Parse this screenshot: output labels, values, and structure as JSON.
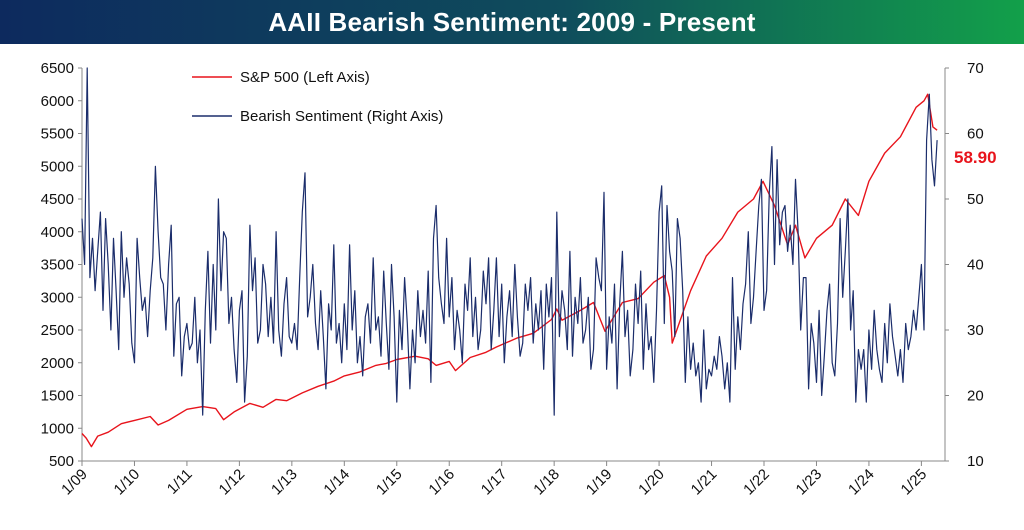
{
  "title": "AAII Bearish Sentiment: 2009 - Present",
  "colors": {
    "sp500": "#e8141c",
    "bearish": "#1b2d6b",
    "title_start": "#0d2a5e",
    "title_end": "#12a04a",
    "callout": "#e8141c"
  },
  "chart_data": {
    "type": "line",
    "title": "AAII Bearish Sentiment: 2009 - Present",
    "xlabel": "",
    "ylabel_left": "",
    "ylabel_right": "",
    "x_ticks": [
      "1/09",
      "1/10",
      "1/11",
      "1/12",
      "1/13",
      "1/14",
      "1/15",
      "1/16",
      "1/17",
      "1/18",
      "1/19",
      "1/20",
      "1/21",
      "1/22",
      "1/23",
      "1/24",
      "1/25"
    ],
    "x_range": [
      2009.0,
      2025.45
    ],
    "y_left": {
      "ticks": [
        500,
        1000,
        1500,
        2000,
        2500,
        3000,
        3500,
        4000,
        4500,
        5000,
        5500,
        6000,
        6500
      ],
      "ylim": [
        500,
        6500
      ]
    },
    "y_right": {
      "ticks": [
        10,
        20,
        30,
        40,
        50,
        60,
        70
      ],
      "ylim": [
        10,
        70
      ]
    },
    "grid": false,
    "legend_position": "top-left",
    "last_value_label": "58.90",
    "series": [
      {
        "name": "S&P 500 (Left Axis)",
        "axis": "left",
        "x": [
          2009.0,
          2009.08,
          2009.18,
          2009.3,
          2009.5,
          2009.75,
          2010.0,
          2010.3,
          2010.45,
          2010.65,
          2011.0,
          2011.3,
          2011.55,
          2011.7,
          2011.9,
          2012.2,
          2012.45,
          2012.7,
          2012.9,
          2013.2,
          2013.5,
          2013.8,
          2014.0,
          2014.3,
          2014.6,
          2014.8,
          2015.0,
          2015.35,
          2015.6,
          2015.75,
          2016.0,
          2016.12,
          2016.4,
          2016.7,
          2016.9,
          2017.3,
          2017.6,
          2017.95,
          2018.05,
          2018.15,
          2018.5,
          2018.75,
          2018.97,
          2019.3,
          2019.6,
          2019.9,
          2020.1,
          2020.2,
          2020.25,
          2020.6,
          2020.9,
          2021.2,
          2021.5,
          2021.8,
          2021.98,
          2022.2,
          2022.45,
          2022.6,
          2022.78,
          2023.0,
          2023.3,
          2023.55,
          2023.8,
          2024.0,
          2024.3,
          2024.6,
          2024.9,
          2025.05,
          2025.12,
          2025.22,
          2025.3
        ],
        "values": [
          920,
          850,
          720,
          880,
          940,
          1070,
          1120,
          1180,
          1050,
          1120,
          1290,
          1330,
          1300,
          1130,
          1250,
          1380,
          1320,
          1440,
          1420,
          1540,
          1640,
          1720,
          1800,
          1860,
          1960,
          1990,
          2050,
          2100,
          2060,
          1960,
          2020,
          1880,
          2080,
          2160,
          2240,
          2380,
          2450,
          2660,
          2820,
          2650,
          2800,
          2920,
          2480,
          2920,
          2980,
          3230,
          3330,
          3000,
          2300,
          3100,
          3630,
          3900,
          4300,
          4500,
          4770,
          4400,
          3800,
          4100,
          3600,
          3900,
          4100,
          4500,
          4250,
          4770,
          5200,
          5450,
          5900,
          6000,
          6100,
          5600,
          5550
        ]
      },
      {
        "name": "Bearish Sentiment (Right Axis)",
        "axis": "right",
        "x": [
          2009.0,
          2009.05,
          2009.1,
          2009.15,
          2009.2,
          2009.25,
          2009.3,
          2009.35,
          2009.4,
          2009.45,
          2009.5,
          2009.55,
          2009.6,
          2009.65,
          2009.7,
          2009.75,
          2009.8,
          2009.85,
          2009.9,
          2009.95,
          2010.0,
          2010.05,
          2010.1,
          2010.15,
          2010.2,
          2010.25,
          2010.3,
          2010.35,
          2010.4,
          2010.45,
          2010.5,
          2010.55,
          2010.6,
          2010.65,
          2010.7,
          2010.75,
          2010.8,
          2010.85,
          2010.9,
          2010.95,
          2011.0,
          2011.05,
          2011.1,
          2011.15,
          2011.2,
          2011.25,
          2011.3,
          2011.35,
          2011.4,
          2011.45,
          2011.5,
          2011.55,
          2011.6,
          2011.65,
          2011.7,
          2011.75,
          2011.8,
          2011.85,
          2011.9,
          2011.95,
          2012.0,
          2012.05,
          2012.1,
          2012.15,
          2012.2,
          2012.25,
          2012.3,
          2012.35,
          2012.4,
          2012.45,
          2012.5,
          2012.55,
          2012.6,
          2012.65,
          2012.7,
          2012.75,
          2012.8,
          2012.85,
          2012.9,
          2012.95,
          2013.0,
          2013.05,
          2013.1,
          2013.15,
          2013.2,
          2013.25,
          2013.3,
          2013.35,
          2013.4,
          2013.45,
          2013.5,
          2013.55,
          2013.6,
          2013.65,
          2013.7,
          2013.75,
          2013.8,
          2013.85,
          2013.9,
          2013.95,
          2014.0,
          2014.05,
          2014.1,
          2014.15,
          2014.2,
          2014.25,
          2014.3,
          2014.35,
          2014.4,
          2014.45,
          2014.5,
          2014.55,
          2014.6,
          2014.65,
          2014.7,
          2014.75,
          2014.8,
          2014.85,
          2014.9,
          2014.95,
          2015.0,
          2015.05,
          2015.1,
          2015.15,
          2015.2,
          2015.25,
          2015.3,
          2015.35,
          2015.4,
          2015.45,
          2015.5,
          2015.55,
          2015.6,
          2015.65,
          2015.7,
          2015.75,
          2015.8,
          2015.85,
          2015.9,
          2015.95,
          2016.0,
          2016.05,
          2016.1,
          2016.15,
          2016.2,
          2016.25,
          2016.3,
          2016.35,
          2016.4,
          2016.45,
          2016.5,
          2016.55,
          2016.6,
          2016.65,
          2016.7,
          2016.75,
          2016.8,
          2016.85,
          2016.9,
          2016.95,
          2017.0,
          2017.05,
          2017.1,
          2017.15,
          2017.2,
          2017.25,
          2017.3,
          2017.35,
          2017.4,
          2017.45,
          2017.5,
          2017.55,
          2017.6,
          2017.65,
          2017.7,
          2017.75,
          2017.8,
          2017.85,
          2017.9,
          2017.95,
          2018.0,
          2018.05,
          2018.1,
          2018.15,
          2018.2,
          2018.25,
          2018.3,
          2018.35,
          2018.4,
          2018.45,
          2018.5,
          2018.55,
          2018.6,
          2018.65,
          2018.7,
          2018.75,
          2018.8,
          2018.85,
          2018.9,
          2018.95,
          2019.0,
          2019.05,
          2019.1,
          2019.15,
          2019.2,
          2019.25,
          2019.3,
          2019.35,
          2019.4,
          2019.45,
          2019.5,
          2019.55,
          2019.6,
          2019.65,
          2019.7,
          2019.75,
          2019.8,
          2019.85,
          2019.9,
          2019.95,
          2020.0,
          2020.05,
          2020.1,
          2020.15,
          2020.2,
          2020.25,
          2020.3,
          2020.35,
          2020.4,
          2020.45,
          2020.5,
          2020.55,
          2020.6,
          2020.65,
          2020.7,
          2020.75,
          2020.8,
          2020.85,
          2020.9,
          2020.95,
          2021.0,
          2021.05,
          2021.1,
          2021.15,
          2021.2,
          2021.25,
          2021.3,
          2021.35,
          2021.4,
          2021.45,
          2021.5,
          2021.55,
          2021.6,
          2021.65,
          2021.7,
          2021.75,
          2021.8,
          2021.85,
          2021.9,
          2021.95,
          2022.0,
          2022.05,
          2022.1,
          2022.15,
          2022.2,
          2022.25,
          2022.3,
          2022.35,
          2022.4,
          2022.45,
          2022.5,
          2022.55,
          2022.6,
          2022.65,
          2022.7,
          2022.75,
          2022.8,
          2022.85,
          2022.9,
          2022.95,
          2023.0,
          2023.05,
          2023.1,
          2023.15,
          2023.2,
          2023.25,
          2023.3,
          2023.35,
          2023.4,
          2023.45,
          2023.5,
          2023.55,
          2023.6,
          2023.65,
          2023.7,
          2023.75,
          2023.8,
          2023.85,
          2023.9,
          2023.95,
          2024.0,
          2024.05,
          2024.1,
          2024.15,
          2024.2,
          2024.25,
          2024.3,
          2024.35,
          2024.4,
          2024.45,
          2024.5,
          2024.55,
          2024.6,
          2024.65,
          2024.7,
          2024.75,
          2024.8,
          2024.85,
          2024.9,
          2024.95,
          2025.0,
          2025.05,
          2025.1,
          2025.15,
          2025.2,
          2025.25,
          2025.3
        ],
        "values": [
          47,
          40,
          70,
          38,
          44,
          36,
          42,
          48,
          33,
          47,
          40,
          30,
          44,
          36,
          27,
          45,
          35,
          41,
          37,
          28,
          25,
          44,
          38,
          33,
          35,
          29,
          36,
          41,
          55,
          45,
          38,
          37,
          30,
          40,
          46,
          26,
          34,
          35,
          23,
          29,
          31,
          27,
          28,
          35,
          25,
          30,
          17,
          33,
          42,
          28,
          40,
          30,
          50,
          36,
          45,
          44,
          31,
          35,
          27,
          22,
          33,
          36,
          19,
          26,
          46,
          36,
          41,
          28,
          30,
          40,
          37,
          29,
          35,
          28,
          45,
          30,
          26,
          34,
          38,
          29,
          28,
          31,
          27,
          38,
          48,
          54,
          32,
          35,
          40,
          31,
          27,
          36,
          29,
          21,
          34,
          30,
          43,
          28,
          31,
          25,
          34,
          27,
          43,
          30,
          36,
          25,
          29,
          23,
          32,
          34,
          28,
          41,
          30,
          32,
          26,
          39,
          31,
          24,
          40,
          32,
          19,
          33,
          27,
          38,
          31,
          21,
          30,
          25,
          36,
          29,
          33,
          28,
          39,
          22,
          44,
          49,
          38,
          34,
          31,
          44,
          32,
          38,
          27,
          33,
          30,
          25,
          37,
          33,
          41,
          29,
          35,
          27,
          30,
          39,
          34,
          41,
          27,
          33,
          41,
          29,
          37,
          25,
          32,
          36,
          29,
          40,
          32,
          26,
          28,
          37,
          33,
          38,
          28,
          34,
          30,
          36,
          24,
          37,
          32,
          38,
          17,
          48,
          29,
          36,
          33,
          27,
          42,
          26,
          35,
          31,
          38,
          28,
          30,
          35,
          24,
          27,
          41,
          38,
          36,
          51,
          24,
          32,
          28,
          37,
          21,
          34,
          42,
          29,
          33,
          23,
          27,
          37,
          31,
          39,
          24,
          34,
          27,
          29,
          22,
          33,
          48,
          52,
          31,
          49,
          42,
          39,
          29,
          47,
          44,
          36,
          22,
          32,
          24,
          28,
          23,
          25,
          19,
          30,
          21,
          24,
          23,
          26,
          24,
          29,
          26,
          21,
          25,
          19,
          38,
          24,
          32,
          27,
          34,
          37,
          45,
          31,
          35,
          42,
          49,
          53,
          33,
          36,
          51,
          58,
          40,
          56,
          43,
          48,
          49,
          42,
          46,
          40,
          53,
          45,
          30,
          38,
          38,
          21,
          31,
          28,
          22,
          33,
          20,
          26,
          33,
          37,
          25,
          23,
          31,
          47,
          35,
          42,
          50,
          30,
          36,
          19,
          27,
          24,
          27,
          19,
          30,
          24,
          33,
          27,
          24,
          22,
          31,
          25,
          34,
          29,
          26,
          23,
          27,
          22,
          31,
          27,
          29,
          33,
          30,
          35,
          40,
          30,
          59,
          66,
          56,
          52,
          59
        ]
      }
    ]
  }
}
